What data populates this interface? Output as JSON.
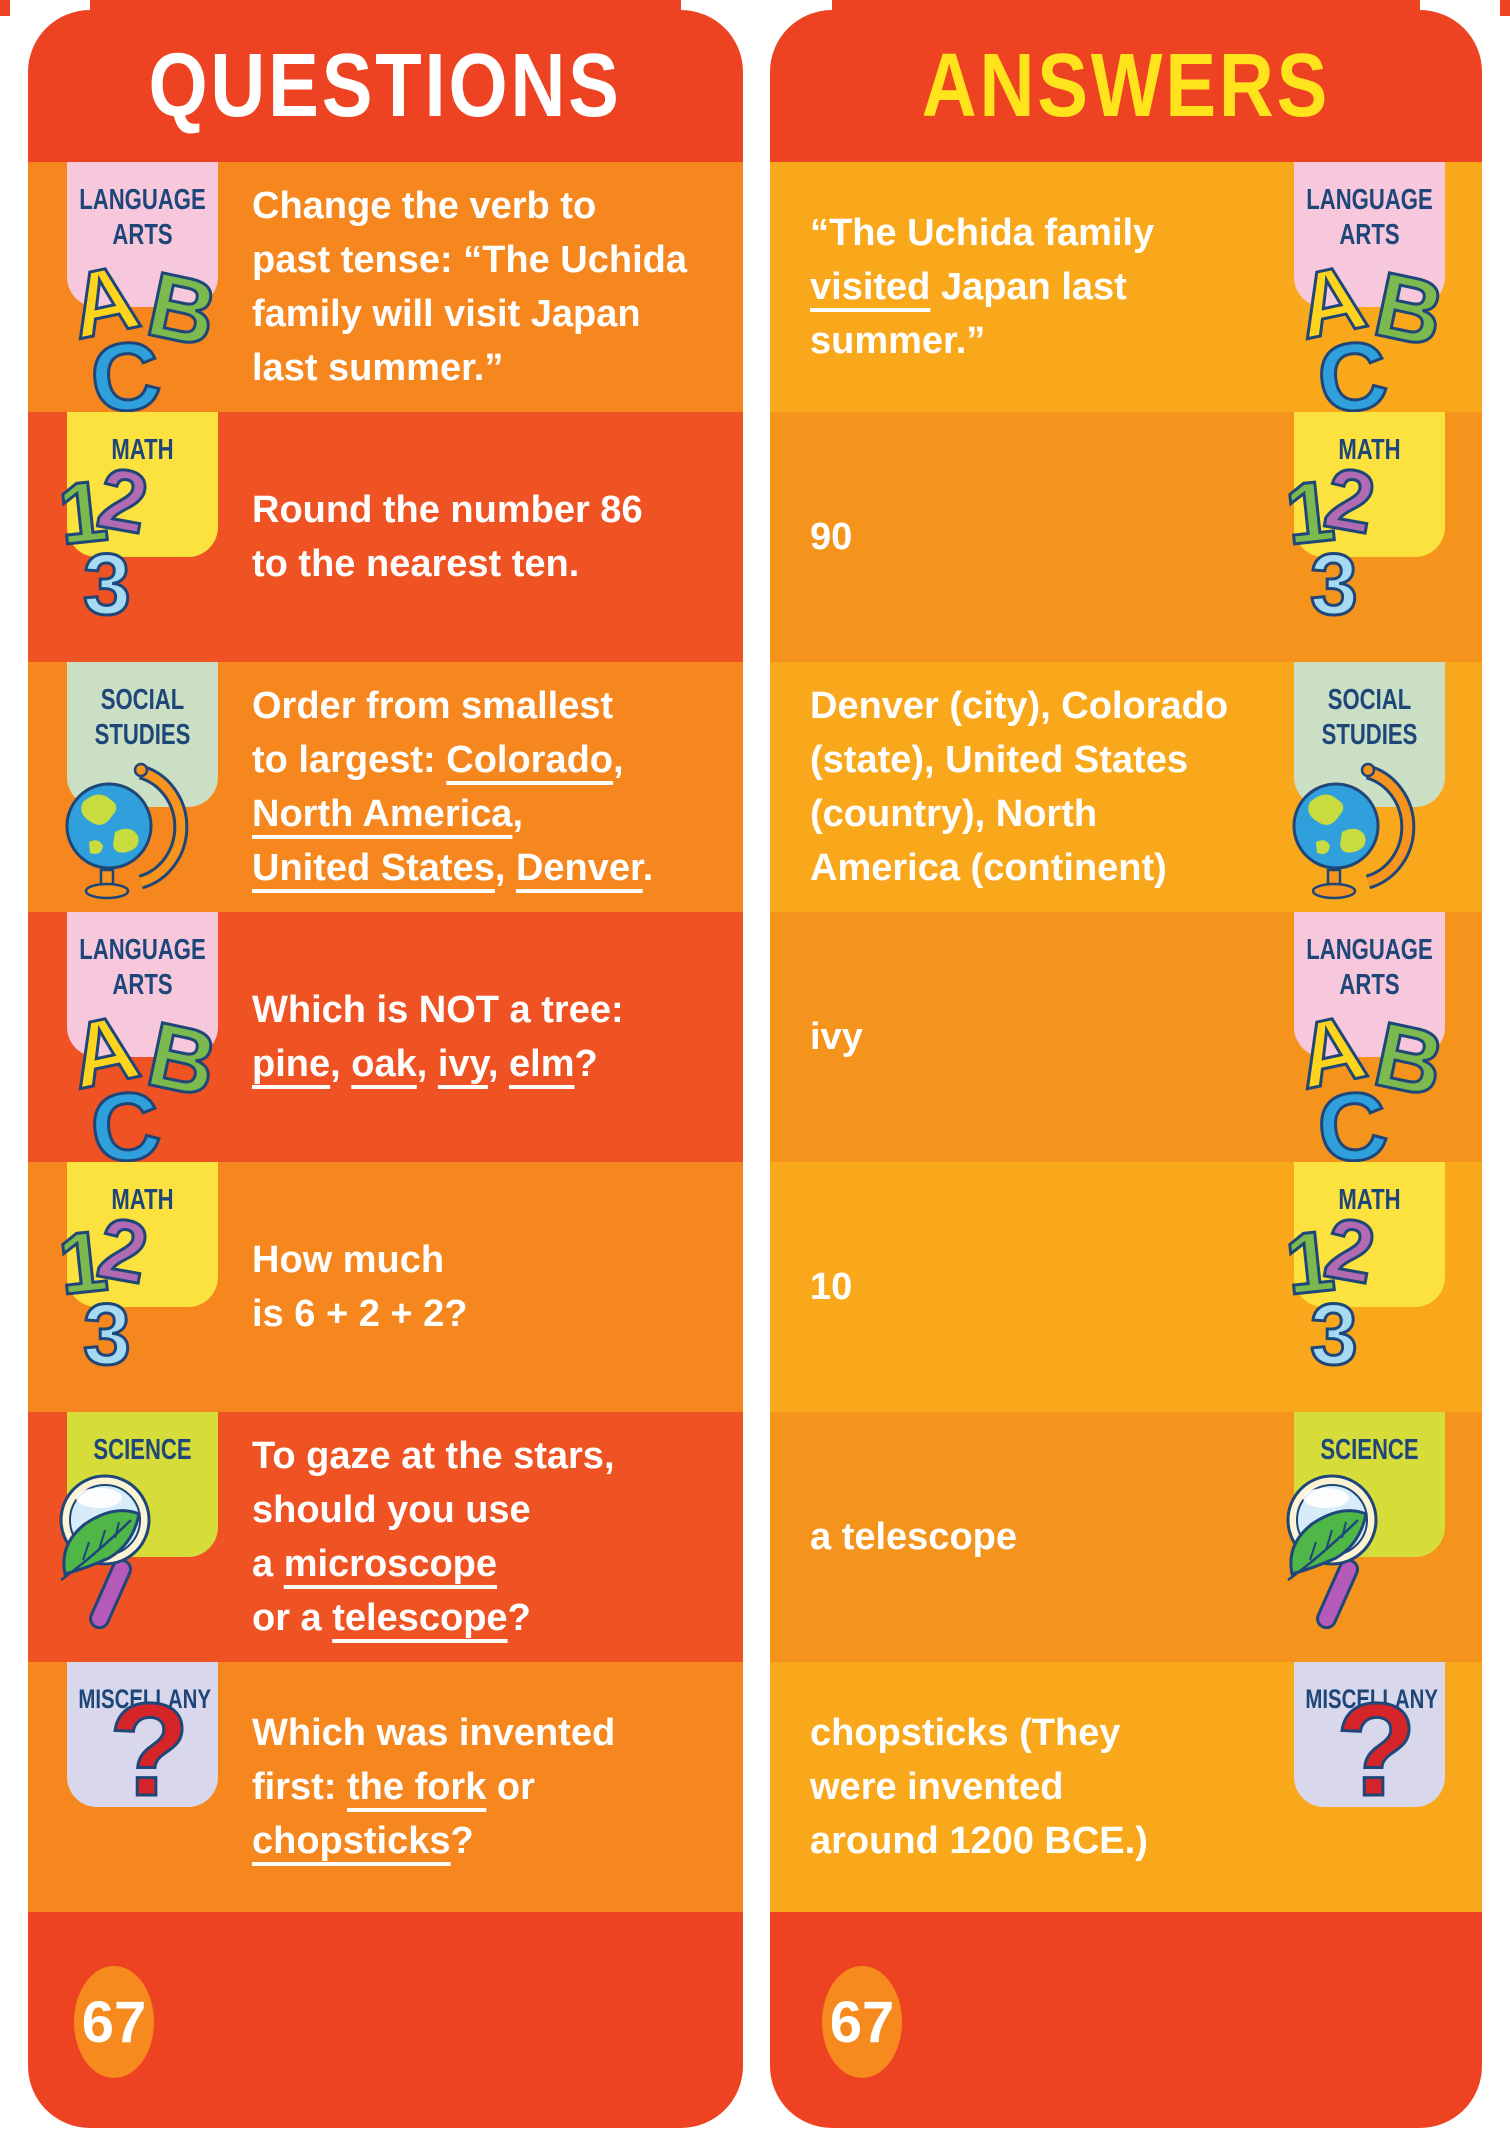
{
  "cards": {
    "questions": {
      "title": "QUESTIONS"
    },
    "answers": {
      "title": "ANSWERS"
    }
  },
  "page_number": "67",
  "icons": {
    "letters": [
      "A",
      "B",
      "C"
    ],
    "digits": [
      "1",
      "2",
      "3"
    ],
    "question_mark": "?"
  },
  "rows": [
    {
      "category": "LANGUAGE\nARTS",
      "badge": "language-arts",
      "question": "Change the verb to\npast tense: “The Uchida\nfamily will visit Japan\nlast summer.”",
      "answer": "“The Uchida family\n[u]visited[/u] Japan last\nsummer.”"
    },
    {
      "category": "MATH",
      "badge": "math",
      "question": "Round the number 86\nto the nearest ten.",
      "answer": "90"
    },
    {
      "category": "SOCIAL\nSTUDIES",
      "badge": "social-studies",
      "question": "Order from smallest\nto largest: [u]Colorado[/u],\n[u]North America[/u],\n[u]United States[/u], [u]Denver[/u].",
      "answer": "Denver (city), Colorado\n(state), United States\n(country), North\nAmerica (continent)"
    },
    {
      "category": "LANGUAGE\nARTS",
      "badge": "language-arts",
      "question": "Which is NOT a tree:\n[u]pine[/u], [u]oak[/u], [u]ivy[/u], [u]elm[/u]?",
      "answer": "ivy"
    },
    {
      "category": "MATH",
      "badge": "math",
      "question": "How much\nis 6 + 2 + 2?",
      "answer": "10"
    },
    {
      "category": "SCIENCE",
      "badge": "science",
      "question": "To gaze at the stars,\nshould you use\na [u]microscope[/u]\nor a [u]telescope[/u]?",
      "answer": "a telescope"
    },
    {
      "category": "MISCELLANY",
      "badge": "miscellany",
      "question": "Which was invented\nfirst: [u]the fork[/u] or\n[u]chopsticks[/u]?",
      "answer": "chopsticks (They\nwere invented\naround 1200 BCE.)"
    }
  ],
  "colors": {
    "card_red": "#EE4323",
    "question_row_orange": "#F6871E",
    "question_row_red_orange": "#EF5323",
    "answer_row_amber": "#FAA81B",
    "answer_row_orange": "#F5941D",
    "questions_title": "#FFFFFF",
    "answers_title": "#FFE31C",
    "badge_navy": "#1E4679",
    "badge_pink": "#F7C8DC",
    "badge_yellow": "#FCE23F",
    "badge_sage": "#CBDFC5",
    "badge_chartreuse": "#D6DC3A",
    "badge_periwinkle": "#D8D7EC",
    "page_circle_orange": "#F68A1E"
  }
}
